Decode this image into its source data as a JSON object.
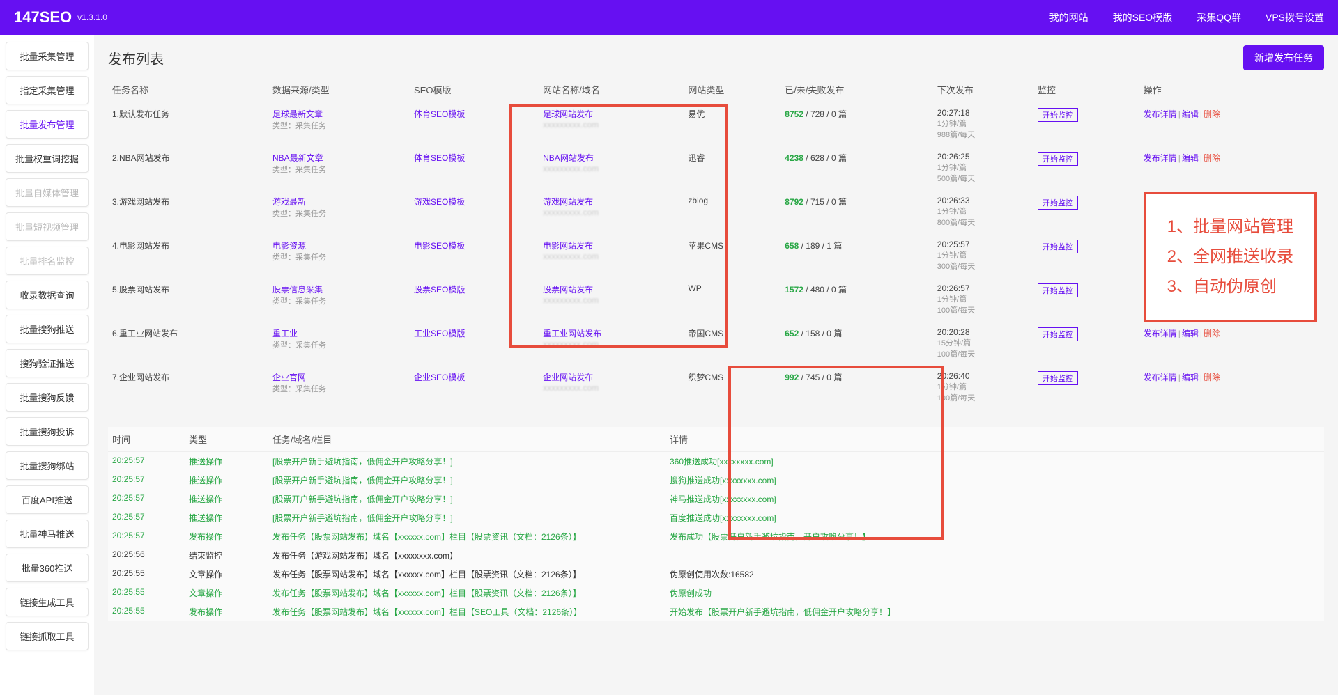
{
  "header": {
    "logo": "147SEO",
    "version": "v1.3.1.0",
    "nav": [
      "我的网站",
      "我的SEO模版",
      "采集QQ群",
      "VPS拨号设置"
    ]
  },
  "sidebar": [
    {
      "label": "批量采集管理",
      "state": "normal"
    },
    {
      "label": "指定采集管理",
      "state": "normal"
    },
    {
      "label": "批量发布管理",
      "state": "active"
    },
    {
      "label": "批量权重词挖掘",
      "state": "normal"
    },
    {
      "label": "批量自媒体管理",
      "state": "disabled"
    },
    {
      "label": "批量短视频管理",
      "state": "disabled"
    },
    {
      "label": "批量排名监控",
      "state": "disabled"
    },
    {
      "label": "收录数据查询",
      "state": "normal"
    },
    {
      "label": "批量搜狗推送",
      "state": "normal"
    },
    {
      "label": "搜狗验证推送",
      "state": "normal"
    },
    {
      "label": "批量搜狗反馈",
      "state": "normal"
    },
    {
      "label": "批量搜狗投诉",
      "state": "normal"
    },
    {
      "label": "批量搜狗绑站",
      "state": "normal"
    },
    {
      "label": "百度API推送",
      "state": "normal"
    },
    {
      "label": "批量神马推送",
      "state": "normal"
    },
    {
      "label": "批量360推送",
      "state": "normal"
    },
    {
      "label": "链接生成工具",
      "state": "normal"
    },
    {
      "label": "链接抓取工具",
      "state": "normal"
    }
  ],
  "page": {
    "title": "发布列表",
    "addBtn": "新增发布任务"
  },
  "cols": {
    "task": "任务名称",
    "source": "数据来源/类型",
    "template": "SEO模版",
    "site": "网站名称/域名",
    "type": "网站类型",
    "stats": "已/未/失败发布",
    "next": "下次发布",
    "monitor": "监控",
    "op": "操作"
  },
  "sourceSub": "类型：采集任务",
  "monitorBtn": "开始监控",
  "opLabels": {
    "detail": "发布详情",
    "edit": "编辑",
    "delete": "删除"
  },
  "rows": [
    {
      "task": "1.默认发布任务",
      "source": "足球最新文章",
      "template": "体育SEO模板",
      "site": "足球网站发布",
      "domain": "xxxxxxxxx.com",
      "type": "易优",
      "done": "8752",
      "rest": " / 728 / 0 篇",
      "next": "20:27:18",
      "next2": "1分钟/篇",
      "next3": "988篇/每天"
    },
    {
      "task": "2.NBA网站发布",
      "source": "NBA最新文章",
      "template": "体育SEO模板",
      "site": "NBA网站发布",
      "domain": "xxxxxxxxx.com",
      "type": "迅睿",
      "done": "4238",
      "rest": " / 628 / 0 篇",
      "next": "20:26:25",
      "next2": "1分钟/篇",
      "next3": "500篇/每天"
    },
    {
      "task": "3.游戏网站发布",
      "source": "游戏最新",
      "template": "游戏SEO模板",
      "site": "游戏网站发布",
      "domain": "xxxxxxxxx.com",
      "type": "zblog",
      "done": "8792",
      "rest": " / 715 / 0 篇",
      "next": "20:26:33",
      "next2": "1分钟/篇",
      "next3": "800篇/每天"
    },
    {
      "task": "4.电影网站发布",
      "source": "电影资源",
      "template": "电影SEO模板",
      "site": "电影网站发布",
      "domain": "xxxxxxxxx.com",
      "type": "苹果CMS",
      "done": "658",
      "rest": " / 189 / 1 篇",
      "next": "20:25:57",
      "next2": "1分钟/篇",
      "next3": "300篇/每天"
    },
    {
      "task": "5.股票网站发布",
      "source": "股票信息采集",
      "template": "股票SEO模版",
      "site": "股票网站发布",
      "domain": "xxxxxxxxx.com",
      "type": "WP",
      "done": "1572",
      "rest": " / 480 / 0 篇",
      "next": "20:26:57",
      "next2": "1分钟/篇",
      "next3": "100篇/每天"
    },
    {
      "task": "6.重工业网站发布",
      "source": "重工业",
      "template": "工业SEO模版",
      "site": "重工业网站发布",
      "domain": "xxxxxxxxx.com",
      "type": "帝国CMS",
      "done": "652",
      "rest": " / 158 / 0 篇",
      "next": "20:20:28",
      "next2": "15分钟/篇",
      "next3": "100篇/每天"
    },
    {
      "task": "7.企业网站发布",
      "source": "企业官网",
      "template": "企业SEO模板",
      "site": "企业网站发布",
      "domain": "xxxxxxxxx.com",
      "type": "织梦CMS",
      "done": "992",
      "rest": " / 745 / 0 篇",
      "next": "20:26:40",
      "next2": "1分钟/篇",
      "next3": "100篇/每天"
    }
  ],
  "callout": [
    "1、批量网站管理",
    "2、全网推送收录",
    "3、自动伪原创"
  ],
  "logCols": {
    "time": "时间",
    "type": "类型",
    "content": "任务/域名/栏目",
    "detail": "详情"
  },
  "logs": [
    {
      "time": "20:25:57",
      "type": "推送操作",
      "content": "[股票开户新手避坑指南，低佣金开户攻略分享！]",
      "detail": "360推送成功[xxxxxxxx.com]",
      "green": true
    },
    {
      "time": "20:25:57",
      "type": "推送操作",
      "content": "[股票开户新手避坑指南，低佣金开户攻略分享！]",
      "detail": "搜狗推送成功[xxxxxxxx.com]",
      "green": true
    },
    {
      "time": "20:25:57",
      "type": "推送操作",
      "content": "[股票开户新手避坑指南，低佣金开户攻略分享！]",
      "detail": "神马推送成功[xxxxxxxx.com]",
      "green": true
    },
    {
      "time": "20:25:57",
      "type": "推送操作",
      "content": "[股票开户新手避坑指南，低佣金开户攻略分享！]",
      "detail": "百度推送成功[xxxxxxxx.com]",
      "green": true
    },
    {
      "time": "20:25:57",
      "type": "发布操作",
      "content": "发布任务【股票网站发布】域名【xxxxxx.com】栏目【股票资讯（文档：2126条）】",
      "detail": "发布成功【股票开户新手避坑指南，开户攻略分享！】",
      "green": true
    },
    {
      "time": "20:25:56",
      "type": "结束监控",
      "content": "发布任务【游戏网站发布】域名【xxxxxxxx.com】",
      "detail": "",
      "green": false
    },
    {
      "time": "20:25:55",
      "type": "文章操作",
      "content": "发布任务【股票网站发布】域名【xxxxxx.com】栏目【股票资讯（文档：2126条）】",
      "detail": "伪原创使用次数:16582",
      "green": false
    },
    {
      "time": "20:25:55",
      "type": "文章操作",
      "content": "发布任务【股票网站发布】域名【xxxxxx.com】栏目【股票资讯（文档：2126条）】",
      "detail": "伪原创成功",
      "green": true
    },
    {
      "time": "20:25:55",
      "type": "发布操作",
      "content": "发布任务【股票网站发布】域名【xxxxxx.com】栏目【SEO工具（文档：2126条）】",
      "detail": "开始发布【股票开户新手避坑指南，低佣金开户攻略分享！】",
      "green": true
    }
  ]
}
